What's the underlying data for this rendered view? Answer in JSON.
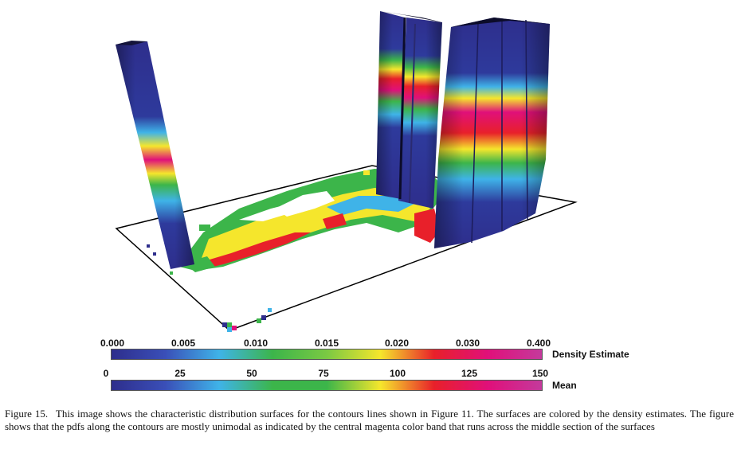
{
  "figure": {
    "scale_density": {
      "label": "Density Estimate",
      "ticks": [
        "0.000",
        "0.005",
        "0.010",
        "0.015",
        "0.020",
        "0.030",
        "0.400"
      ],
      "colors": [
        "#2e2e8c",
        "#3a4fb8",
        "#3fb3e8",
        "#3cb54a",
        "#7ac943",
        "#f5e62c",
        "#e8202a",
        "#e0107a",
        "#c43a9c"
      ]
    },
    "scale_mean": {
      "label": "Mean",
      "ticks": [
        "0",
        "25",
        "50",
        "75",
        "100",
        "125",
        "150"
      ],
      "colors": [
        "#2e2e8c",
        "#3a4fb8",
        "#3fb3e8",
        "#3cb54a",
        "#3cb54a",
        "#f5e62c",
        "#e8202a",
        "#e0107a",
        "#c43a9c"
      ]
    }
  },
  "caption": {
    "label": "Figure 15.",
    "text": "This image shows the characteristic distribution surfaces for the contours lines shown in Figure 11. The surfaces are colored by the density estimates. The figure shows that the pdfs along the contours are mostly unimodal as indicated by the central magenta color band that runs across the middle section of the surfaces"
  }
}
